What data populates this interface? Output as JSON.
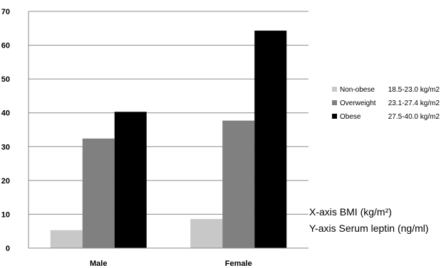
{
  "chart_data": {
    "type": "bar",
    "categories": [
      "Male",
      "Female"
    ],
    "series": [
      {
        "name": "Non-obese",
        "range": "18.5-23.0 kg/m2",
        "color": "#c8c8c8",
        "values": [
          5.3,
          8.6
        ]
      },
      {
        "name": "Overweight",
        "range": "23.1-27.4 kg/m2",
        "color": "#808080",
        "values": [
          32.4,
          37.7
        ]
      },
      {
        "name": "Obese",
        "range": "27.5-40.0 kg/m2",
        "color": "#000000",
        "values": [
          40.3,
          64.3
        ]
      }
    ],
    "ylim": [
      0,
      70
    ],
    "yticks": [
      0,
      10,
      20,
      30,
      40,
      50,
      60,
      70
    ],
    "grid": true,
    "legend_position": "right",
    "annotations": [
      "X-axis  BMI (kg/m²)",
      "Y-axis  Serum leptin (ng/ml)"
    ]
  }
}
